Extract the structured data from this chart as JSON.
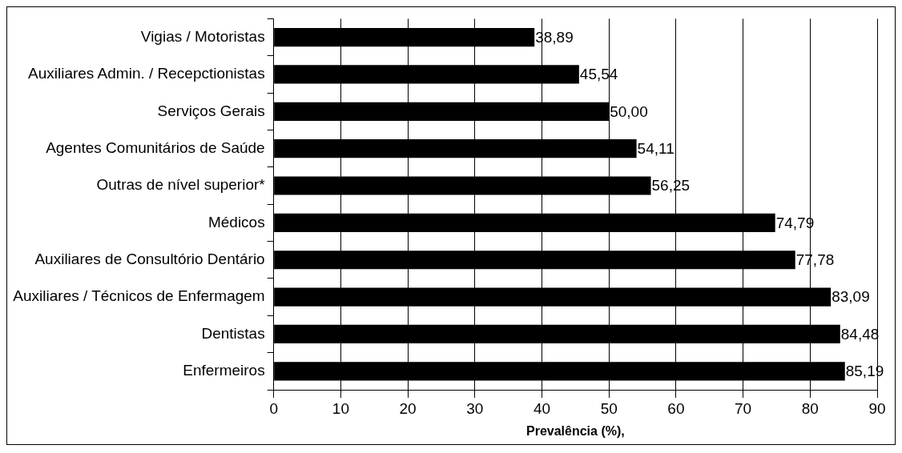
{
  "chart_data": {
    "type": "bar",
    "orientation": "horizontal",
    "xlabel": "Prevalência (%),",
    "categories": [
      "Vigias / Motoristas",
      "Auxiliares Admin. / Recepctionistas",
      "Serviços Gerais",
      "Agentes Comunitários de Saúde",
      "Outras de nível superior*",
      "Médicos",
      "Auxiliares de Consultório Dentário",
      "Auxiliares / Técnicos de Enfermagem",
      "Dentistas",
      "Enfermeiros"
    ],
    "values": [
      38.89,
      45.54,
      50.0,
      54.11,
      56.25,
      74.79,
      77.78,
      83.09,
      84.48,
      85.19
    ],
    "value_labels": [
      "38,89",
      "45,54",
      "50,00",
      "54,11",
      "56,25",
      "74,79",
      "77,78",
      "83,09",
      "84,48",
      "85,19"
    ],
    "color": "#000000",
    "xlim": [
      0,
      90
    ],
    "xticks": [
      0,
      10,
      20,
      30,
      40,
      50,
      60,
      70,
      80,
      90
    ],
    "grid": "x",
    "legend": false
  }
}
